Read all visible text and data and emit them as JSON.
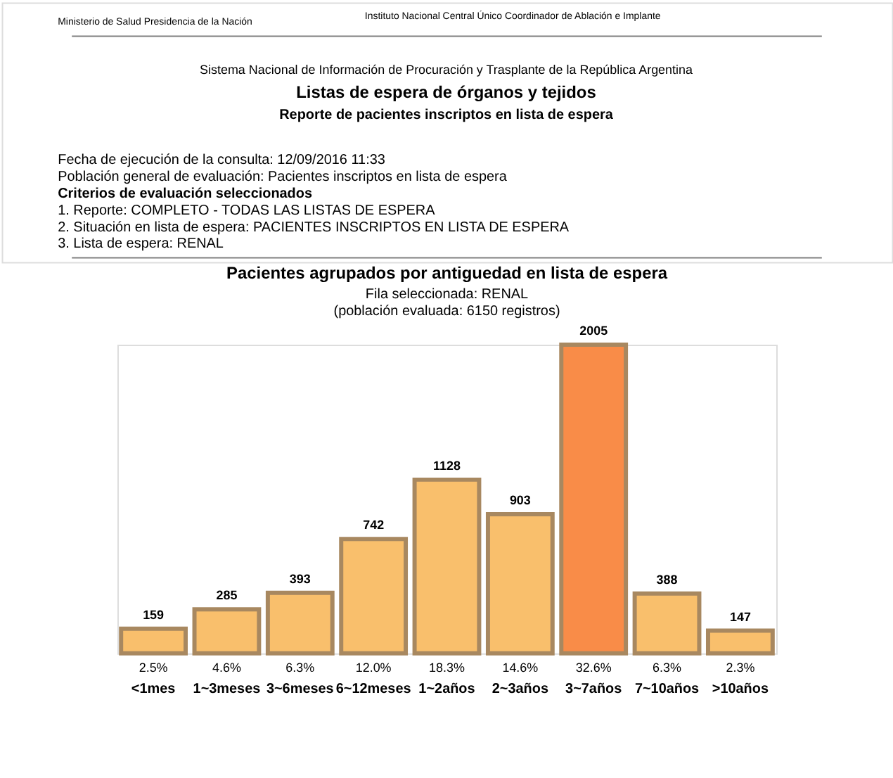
{
  "chart_data": {
    "type": "bar",
    "title": "Pacientes agrupados por antiguedad en lista de espera",
    "subtitle": "Fila seleccionada: RENAL\n(población evaluada: 6150 registros)",
    "categories": [
      "<1mes",
      "1~3meses",
      "3~6meses",
      "6~12meses",
      "1~2años",
      "2~3años",
      "3~7años",
      "7~10años",
      ">10años"
    ],
    "values": [
      159,
      285,
      393,
      742,
      1128,
      903,
      2005,
      388,
      147
    ],
    "colors": [
      "#f9bf6c",
      "#f9bf6c",
      "#f9bf6c",
      "#f9bf6c",
      "#f9bf6c",
      "#f9bf6c",
      "#f98c48",
      "#f9bf6c",
      "#f9bf6c"
    ],
    "data_labels": true,
    "annotations": [
      "Ministerio de Salud Presidencia de la Nación",
      "Instituto Nacional Central Único Coordinador de Ablación e Implante",
      "Sistema Nacional de Información de Procuración y Trasplante de la República Argentina",
      "Listas de espera de órganos y tejidos",
      "Reporte de pacientes inscriptos en lista de espera",
      "Fecha de ejecución de la consulta:   12/09/2016 11:33",
      "Población general de evaluación: Pacientes inscriptos en lista de espera",
      "Criterios de evaluación seleccionados",
      "1. Reporte: COMPLETO - TODAS LAS LISTAS DE ESPERA",
      "2. Situación en lista de espera: PACIENTES INSCRIPTOS EN LISTA DE ESPERA",
      "3. Lista de espera: RENAL",
      {
        "text": "2.5%",
        "x": "<1mes",
        "y": 0
      },
      {
        "text": "4.6%",
        "x": "1~3meses",
        "y": 0
      },
      {
        "text": "6.3%",
        "x": "3~6meses",
        "y": 0
      },
      {
        "text": "12.0%",
        "x": "6~12meses",
        "y": 0
      },
      {
        "text": "18.3%",
        "x": "1~2años",
        "y": 0
      },
      {
        "text": "14.6%",
        "x": "2~3años",
        "y": 0
      },
      {
        "text": "32.6%",
        "x": "3~7años",
        "y": 0
      },
      {
        "text": "6.3%",
        "x": "7~10años",
        "y": 0
      },
      {
        "text": "2.3%",
        "x": ">10años",
        "y": 0
      }
    ]
  }
}
